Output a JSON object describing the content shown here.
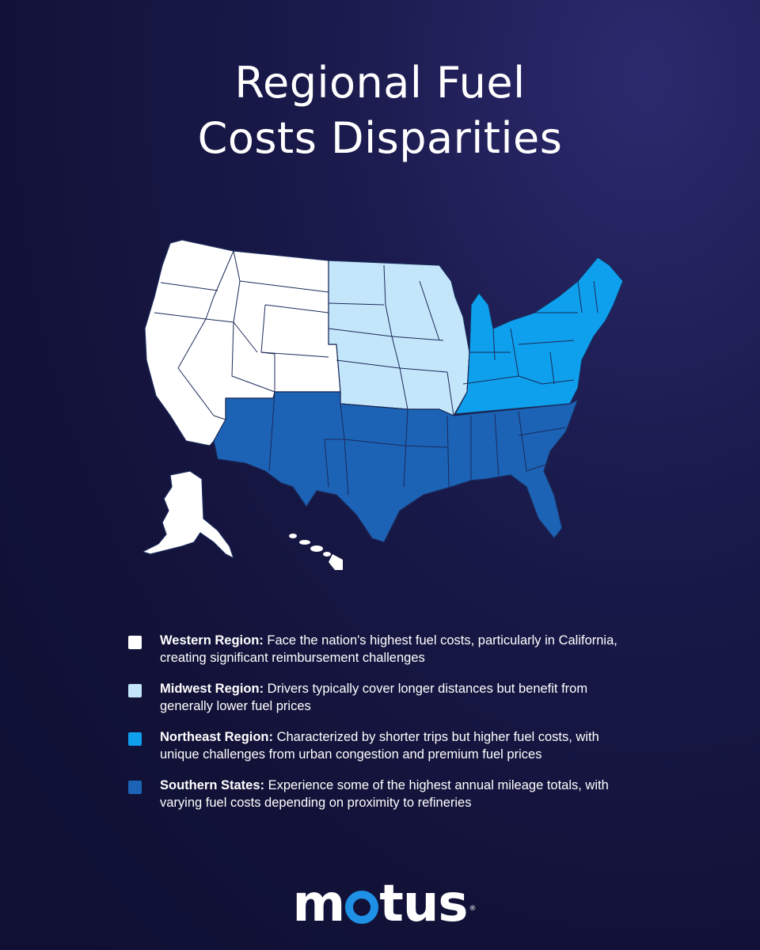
{
  "title": {
    "line1": "Regional Fuel",
    "line2": "Costs Disparities"
  },
  "colors": {
    "western": "#ffffff",
    "midwest": "#c4e6fa",
    "northeast": "#0ea0ec",
    "southern": "#1c63b6",
    "border": "#1b2a5a"
  },
  "legend": [
    {
      "region": "Western Region:",
      "text": "Face the nation's highest fuel costs, particularly in California, creating significant reimbursement challenges"
    },
    {
      "region": "Midwest Region:",
      "text": "Drivers typically cover longer distances but benefit from generally lower fuel prices"
    },
    {
      "region": "Northeast Region:",
      "text": "Characterized by shorter trips but higher fuel costs, with unique challenges from urban congestion and premium fuel prices"
    },
    {
      "region": "Southern States:",
      "text": "Experience some of the highest annual mileage totals, with varying fuel costs depending on proximity to refineries"
    }
  ],
  "logo": {
    "prefix": "m",
    "suffix": "tus",
    "registered": "®"
  }
}
